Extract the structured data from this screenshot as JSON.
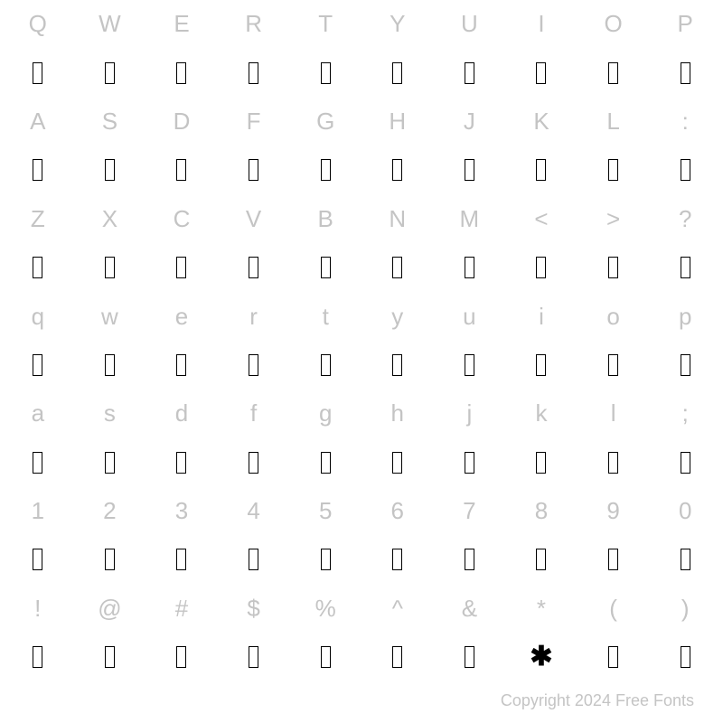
{
  "rows": [
    {
      "type": "label",
      "cells": [
        "Q",
        "W",
        "E",
        "R",
        "T",
        "Y",
        "U",
        "I",
        "O",
        "P"
      ]
    },
    {
      "type": "glyph",
      "cells": [
        "box",
        "box",
        "box",
        "box",
        "box",
        "box",
        "box",
        "box",
        "box",
        "box"
      ]
    },
    {
      "type": "label",
      "cells": [
        "A",
        "S",
        "D",
        "F",
        "G",
        "H",
        "J",
        "K",
        "L",
        ":"
      ]
    },
    {
      "type": "glyph",
      "cells": [
        "box",
        "box",
        "box",
        "box",
        "box",
        "box",
        "box",
        "box",
        "box",
        "box"
      ]
    },
    {
      "type": "label",
      "cells": [
        "Z",
        "X",
        "C",
        "V",
        "B",
        "N",
        "M",
        "<",
        ">",
        "?"
      ]
    },
    {
      "type": "glyph",
      "cells": [
        "box",
        "box",
        "box",
        "box",
        "box",
        "box",
        "box",
        "box",
        "box",
        "box"
      ]
    },
    {
      "type": "label",
      "cells": [
        "q",
        "w",
        "e",
        "r",
        "t",
        "y",
        "u",
        "i",
        "o",
        "p"
      ]
    },
    {
      "type": "glyph",
      "cells": [
        "box",
        "box",
        "box",
        "box",
        "box",
        "box",
        "box",
        "box",
        "box",
        "box"
      ]
    },
    {
      "type": "label",
      "cells": [
        "a",
        "s",
        "d",
        "f",
        "g",
        "h",
        "j",
        "k",
        "l",
        ";"
      ]
    },
    {
      "type": "glyph",
      "cells": [
        "box",
        "box",
        "box",
        "box",
        "box",
        "box",
        "box",
        "box",
        "box",
        "box"
      ]
    },
    {
      "type": "label",
      "cells": [
        "1",
        "2",
        "3",
        "4",
        "5",
        "6",
        "7",
        "8",
        "9",
        "0"
      ]
    },
    {
      "type": "glyph",
      "cells": [
        "box",
        "box",
        "box",
        "box",
        "box",
        "box",
        "box",
        "box",
        "box",
        "box"
      ]
    },
    {
      "type": "label",
      "cells": [
        "!",
        "@",
        "#",
        "$",
        "%",
        "^",
        "&",
        "*",
        "(",
        ")"
      ]
    },
    {
      "type": "glyph",
      "cells": [
        "box",
        "box",
        "box",
        "box",
        "box",
        "box",
        "box",
        "asterisk",
        "box",
        "box"
      ]
    }
  ],
  "asterisk_glyph": "✱",
  "footer": "Copyright 2024 Free Fonts",
  "colors": {
    "label_text": "#c4c4c4",
    "glyph_border": "#000000",
    "glyph_fill": "#000000",
    "background": "#ffffff"
  },
  "grid": {
    "cols": 10,
    "rows": 14
  },
  "font_sizes": {
    "label": 26,
    "footer": 18,
    "asterisk": 30
  }
}
